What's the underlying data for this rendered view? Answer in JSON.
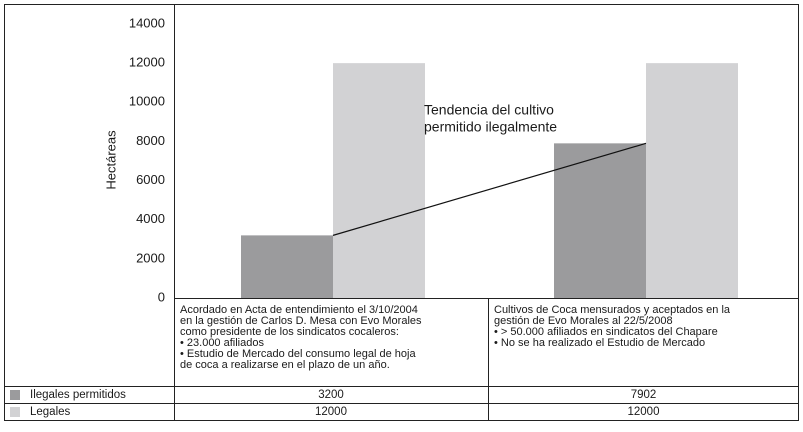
{
  "chart_data": {
    "type": "bar",
    "ylabel": "Hectáreas",
    "categories": [
      [
        "Acordado en Acta de entendimiento el 3/10/2004",
        "en la gestión de Carlos D. Mesa con Evo Morales",
        "como presidente de los sindicatos cocaleros:",
        "• 23.000 afiliados",
        "• Estudio de Mercado del consumo legal de hoja",
        "de coca a realizarse en el plazo de un año."
      ],
      [
        "Cultivos de Coca mensurados y aceptados en la",
        "gestión de Evo Morales al 22/5/2008",
        "• > 50.000 afiliados en sindicatos del Chapare",
        "• No se ha realizado el Estudio de Mercado"
      ]
    ],
    "series": [
      {
        "name": "Ilegales permitidos",
        "color": "#9b9b9d",
        "values": [
          3200,
          7902
        ]
      },
      {
        "name": "Legales",
        "color": "#d2d2d4",
        "values": [
          12000,
          12000
        ]
      }
    ],
    "annotation": [
      "Tendencia del cultivo",
      "permitido ilegalmente"
    ],
    "ylim": [
      0,
      14000
    ],
    "yticks": [
      0,
      2000,
      4000,
      6000,
      8000,
      10000,
      12000,
      14000
    ],
    "grid": false
  }
}
